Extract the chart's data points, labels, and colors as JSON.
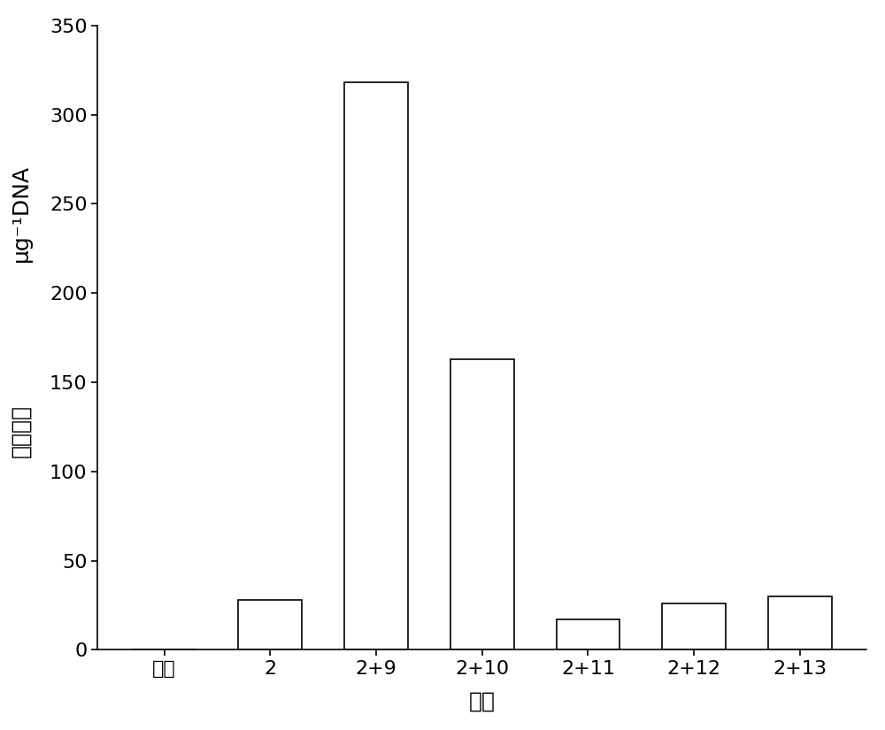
{
  "categories": [
    "空白",
    "2",
    "2+9",
    "2+10",
    "2+11",
    "2+12",
    "2+13"
  ],
  "values": [
    0,
    28,
    318,
    163,
    17,
    26,
    30
  ],
  "bar_color": "#ffffff",
  "bar_edgecolor": "#000000",
  "bar_linewidth": 1.2,
  "title": "",
  "xlabel": "质粒",
  "ylabel_chinese": "转化效率",
  "ylabel_latin": "μg⁻¹DNA",
  "ylim": [
    0,
    350
  ],
  "yticks": [
    0,
    50,
    100,
    150,
    200,
    250,
    300,
    350
  ],
  "xlabel_fontsize": 18,
  "ylabel_fontsize": 18,
  "tick_fontsize": 16,
  "background_color": "#ffffff",
  "bar_width": 0.6
}
